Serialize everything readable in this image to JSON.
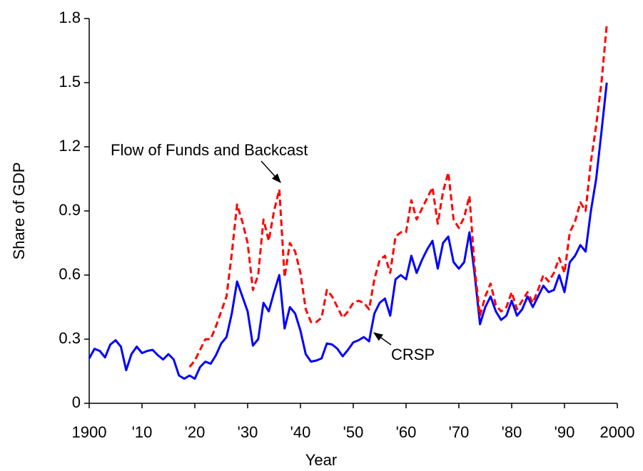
{
  "chart_data": {
    "type": "line",
    "x_label": "Year",
    "y_label": "Share of GDP",
    "x": [
      1900,
      1901,
      1902,
      1903,
      1904,
      1905,
      1906,
      1907,
      1908,
      1909,
      1910,
      1911,
      1912,
      1913,
      1914,
      1915,
      1916,
      1917,
      1918,
      1919,
      1920,
      1921,
      1922,
      1923,
      1924,
      1925,
      1926,
      1927,
      1928,
      1929,
      1930,
      1931,
      1932,
      1933,
      1934,
      1935,
      1936,
      1937,
      1938,
      1939,
      1940,
      1941,
      1942,
      1943,
      1944,
      1945,
      1946,
      1947,
      1948,
      1949,
      1950,
      1951,
      1952,
      1953,
      1954,
      1955,
      1956,
      1957,
      1958,
      1959,
      1960,
      1961,
      1962,
      1963,
      1964,
      1965,
      1966,
      1967,
      1968,
      1969,
      1970,
      1971,
      1972,
      1973,
      1974,
      1975,
      1976,
      1977,
      1978,
      1979,
      1980,
      1981,
      1982,
      1983,
      1984,
      1985,
      1986,
      1987,
      1988,
      1989,
      1990,
      1991,
      1992,
      1993,
      1994,
      1995,
      1996,
      1997,
      1998
    ],
    "series": [
      {
        "name": "CRSP",
        "color": "#0000ff",
        "dash": false,
        "values": [
          0.21,
          0.255,
          0.245,
          0.215,
          0.275,
          0.295,
          0.265,
          0.155,
          0.23,
          0.265,
          0.235,
          0.245,
          0.25,
          0.225,
          0.205,
          0.23,
          0.205,
          0.13,
          0.115,
          0.13,
          0.115,
          0.17,
          0.195,
          0.185,
          0.225,
          0.28,
          0.31,
          0.42,
          0.57,
          0.5,
          0.43,
          0.27,
          0.3,
          0.47,
          0.43,
          0.52,
          0.6,
          0.35,
          0.45,
          0.42,
          0.34,
          0.23,
          0.195,
          0.2,
          0.21,
          0.28,
          0.275,
          0.255,
          0.22,
          0.25,
          0.285,
          0.295,
          0.31,
          0.29,
          0.42,
          0.47,
          0.49,
          0.41,
          0.58,
          0.6,
          0.58,
          0.69,
          0.61,
          0.67,
          0.72,
          0.76,
          0.63,
          0.75,
          0.78,
          0.66,
          0.63,
          0.66,
          0.8,
          0.6,
          0.37,
          0.45,
          0.5,
          0.43,
          0.39,
          0.41,
          0.48,
          0.41,
          0.44,
          0.5,
          0.45,
          0.5,
          0.55,
          0.52,
          0.53,
          0.6,
          0.52,
          0.66,
          0.69,
          0.74,
          0.71,
          0.9,
          1.05,
          1.27,
          1.5
        ]
      },
      {
        "name": "Flow of Funds and Backcast",
        "color": "#ff0000",
        "dash": true,
        "values": [
          null,
          null,
          null,
          null,
          null,
          null,
          null,
          null,
          null,
          null,
          null,
          null,
          null,
          null,
          null,
          null,
          null,
          null,
          null,
          0.17,
          0.2,
          0.25,
          0.3,
          0.3,
          0.36,
          0.43,
          0.5,
          0.7,
          0.93,
          0.85,
          0.75,
          0.53,
          0.6,
          0.86,
          0.76,
          0.9,
          1.0,
          0.59,
          0.75,
          0.71,
          0.61,
          0.44,
          0.38,
          0.38,
          0.4,
          0.53,
          0.5,
          0.45,
          0.4,
          0.43,
          0.47,
          0.48,
          0.47,
          0.44,
          0.58,
          0.67,
          0.69,
          0.61,
          0.78,
          0.8,
          0.8,
          0.95,
          0.86,
          0.91,
          0.96,
          1.01,
          0.84,
          0.99,
          1.08,
          0.86,
          0.82,
          0.87,
          0.97,
          0.63,
          0.41,
          0.5,
          0.56,
          0.46,
          0.43,
          0.45,
          0.52,
          0.44,
          0.48,
          0.52,
          0.47,
          0.53,
          0.6,
          0.57,
          0.61,
          0.68,
          0.61,
          0.8,
          0.85,
          0.94,
          0.9,
          1.13,
          1.3,
          1.5,
          1.77
        ]
      }
    ],
    "xlim": [
      1900,
      2000
    ],
    "xticks": [
      1900,
      {
        "value": 1910,
        "label": "'10"
      },
      {
        "value": 1920,
        "label": "'20"
      },
      {
        "value": 1930,
        "label": "'30"
      },
      {
        "value": 1940,
        "label": "'40"
      },
      {
        "value": 1950,
        "label": "'50"
      },
      {
        "value": 1960,
        "label": "'60"
      },
      {
        "value": 1970,
        "label": "'70"
      },
      {
        "value": 1980,
        "label": "'80"
      },
      {
        "value": 1990,
        "label": "'90"
      },
      2000
    ],
    "ylim": [
      0,
      1.8
    ],
    "yticks": [
      0,
      0.3,
      0.6,
      0.9,
      1.2,
      1.5,
      1.8
    ],
    "annotations": [
      {
        "text": "Flow of Funds and Backcast"
      },
      {
        "text": "CRSP"
      }
    ]
  }
}
